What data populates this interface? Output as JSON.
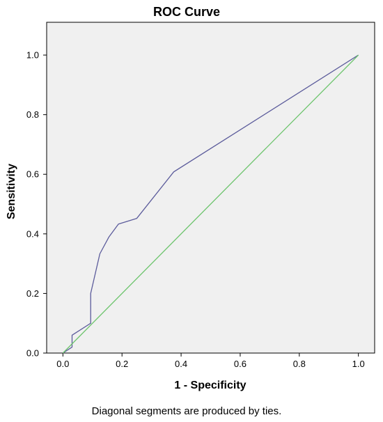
{
  "chart_data": {
    "type": "line",
    "title": "ROC Curve",
    "xlabel": "1 - Specificity",
    "ylabel": "Sensitivity",
    "xlim": [
      -0.055,
      1.055
    ],
    "ylim": [
      0,
      1.11
    ],
    "xticks": [
      0.0,
      0.2,
      0.4,
      0.6,
      0.8,
      1.0
    ],
    "yticks": [
      0.0,
      0.2,
      0.4,
      0.6,
      0.8,
      1.0
    ],
    "tick_labels_x": [
      "0.0",
      "0.2",
      "0.4",
      "0.6",
      "0.8",
      "1.0"
    ],
    "tick_labels_y": [
      "0.0",
      "0.2",
      "0.4",
      "0.6",
      "0.8",
      "1.0"
    ],
    "grid": false,
    "background": "#f0f0f0",
    "series": [
      {
        "color": "#5b5b9b",
        "x": [
          0.0,
          0.031,
          0.031,
          0.031,
          0.094,
          0.094,
          0.125,
          0.156,
          0.188,
          0.25,
          0.375,
          1.0
        ],
        "y": [
          0.0,
          0.02,
          0.04,
          0.06,
          0.1,
          0.2,
          0.333,
          0.39,
          0.433,
          0.452,
          0.608,
          1.0
        ]
      },
      {
        "color": "#6cc46c",
        "x": [
          0.0,
          1.0
        ],
        "y": [
          0.0,
          1.0
        ]
      }
    ],
    "footnote": "Diagonal segments are produced by ties."
  }
}
